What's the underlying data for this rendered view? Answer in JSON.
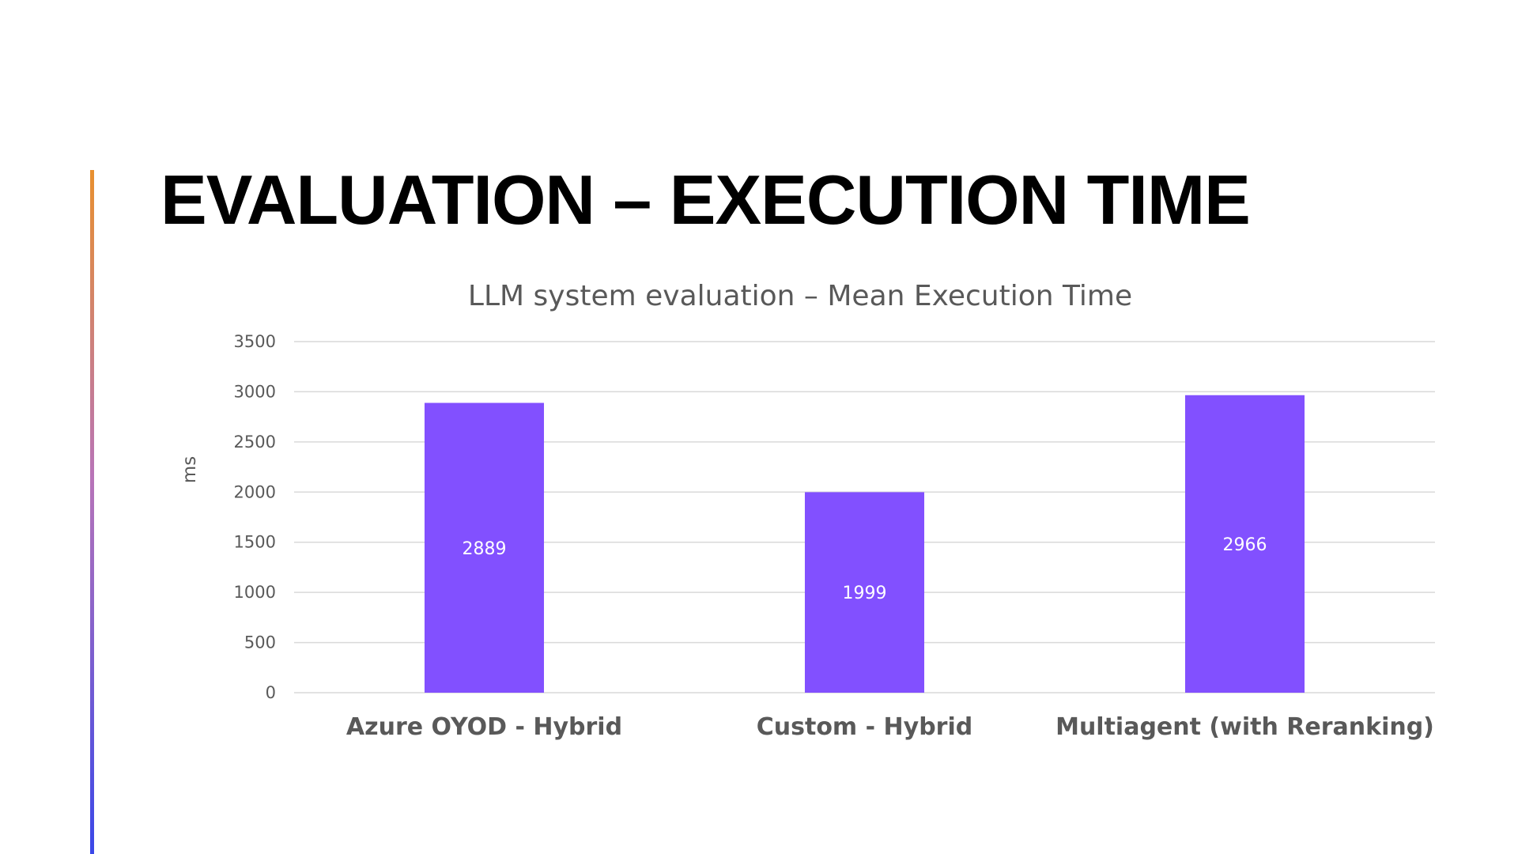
{
  "slide": {
    "title": "EVALUATION – EXECUTION TIME"
  },
  "colors": {
    "bar": "#8250ff",
    "gridline": "#d9d9d9",
    "text": "#595959",
    "accent_gradient": [
      "#e8902f",
      "#b874b8",
      "#3a47e8"
    ]
  },
  "chart_data": {
    "type": "bar",
    "title": "LLM system evaluation – Mean Execution Time",
    "xlabel": "",
    "ylabel": "ms",
    "categories": [
      "Azure OYOD - Hybrid",
      "Custom - Hybrid",
      "Multiagent (with Reranking)"
    ],
    "values": [
      2889,
      1999,
      2966
    ],
    "ylim": [
      0,
      3500
    ],
    "yticks": [
      0,
      500,
      1000,
      1500,
      2000,
      2500,
      3000,
      3500
    ],
    "grid": true,
    "legend": "none",
    "data_labels": [
      "2889",
      "1999",
      "2966"
    ]
  }
}
